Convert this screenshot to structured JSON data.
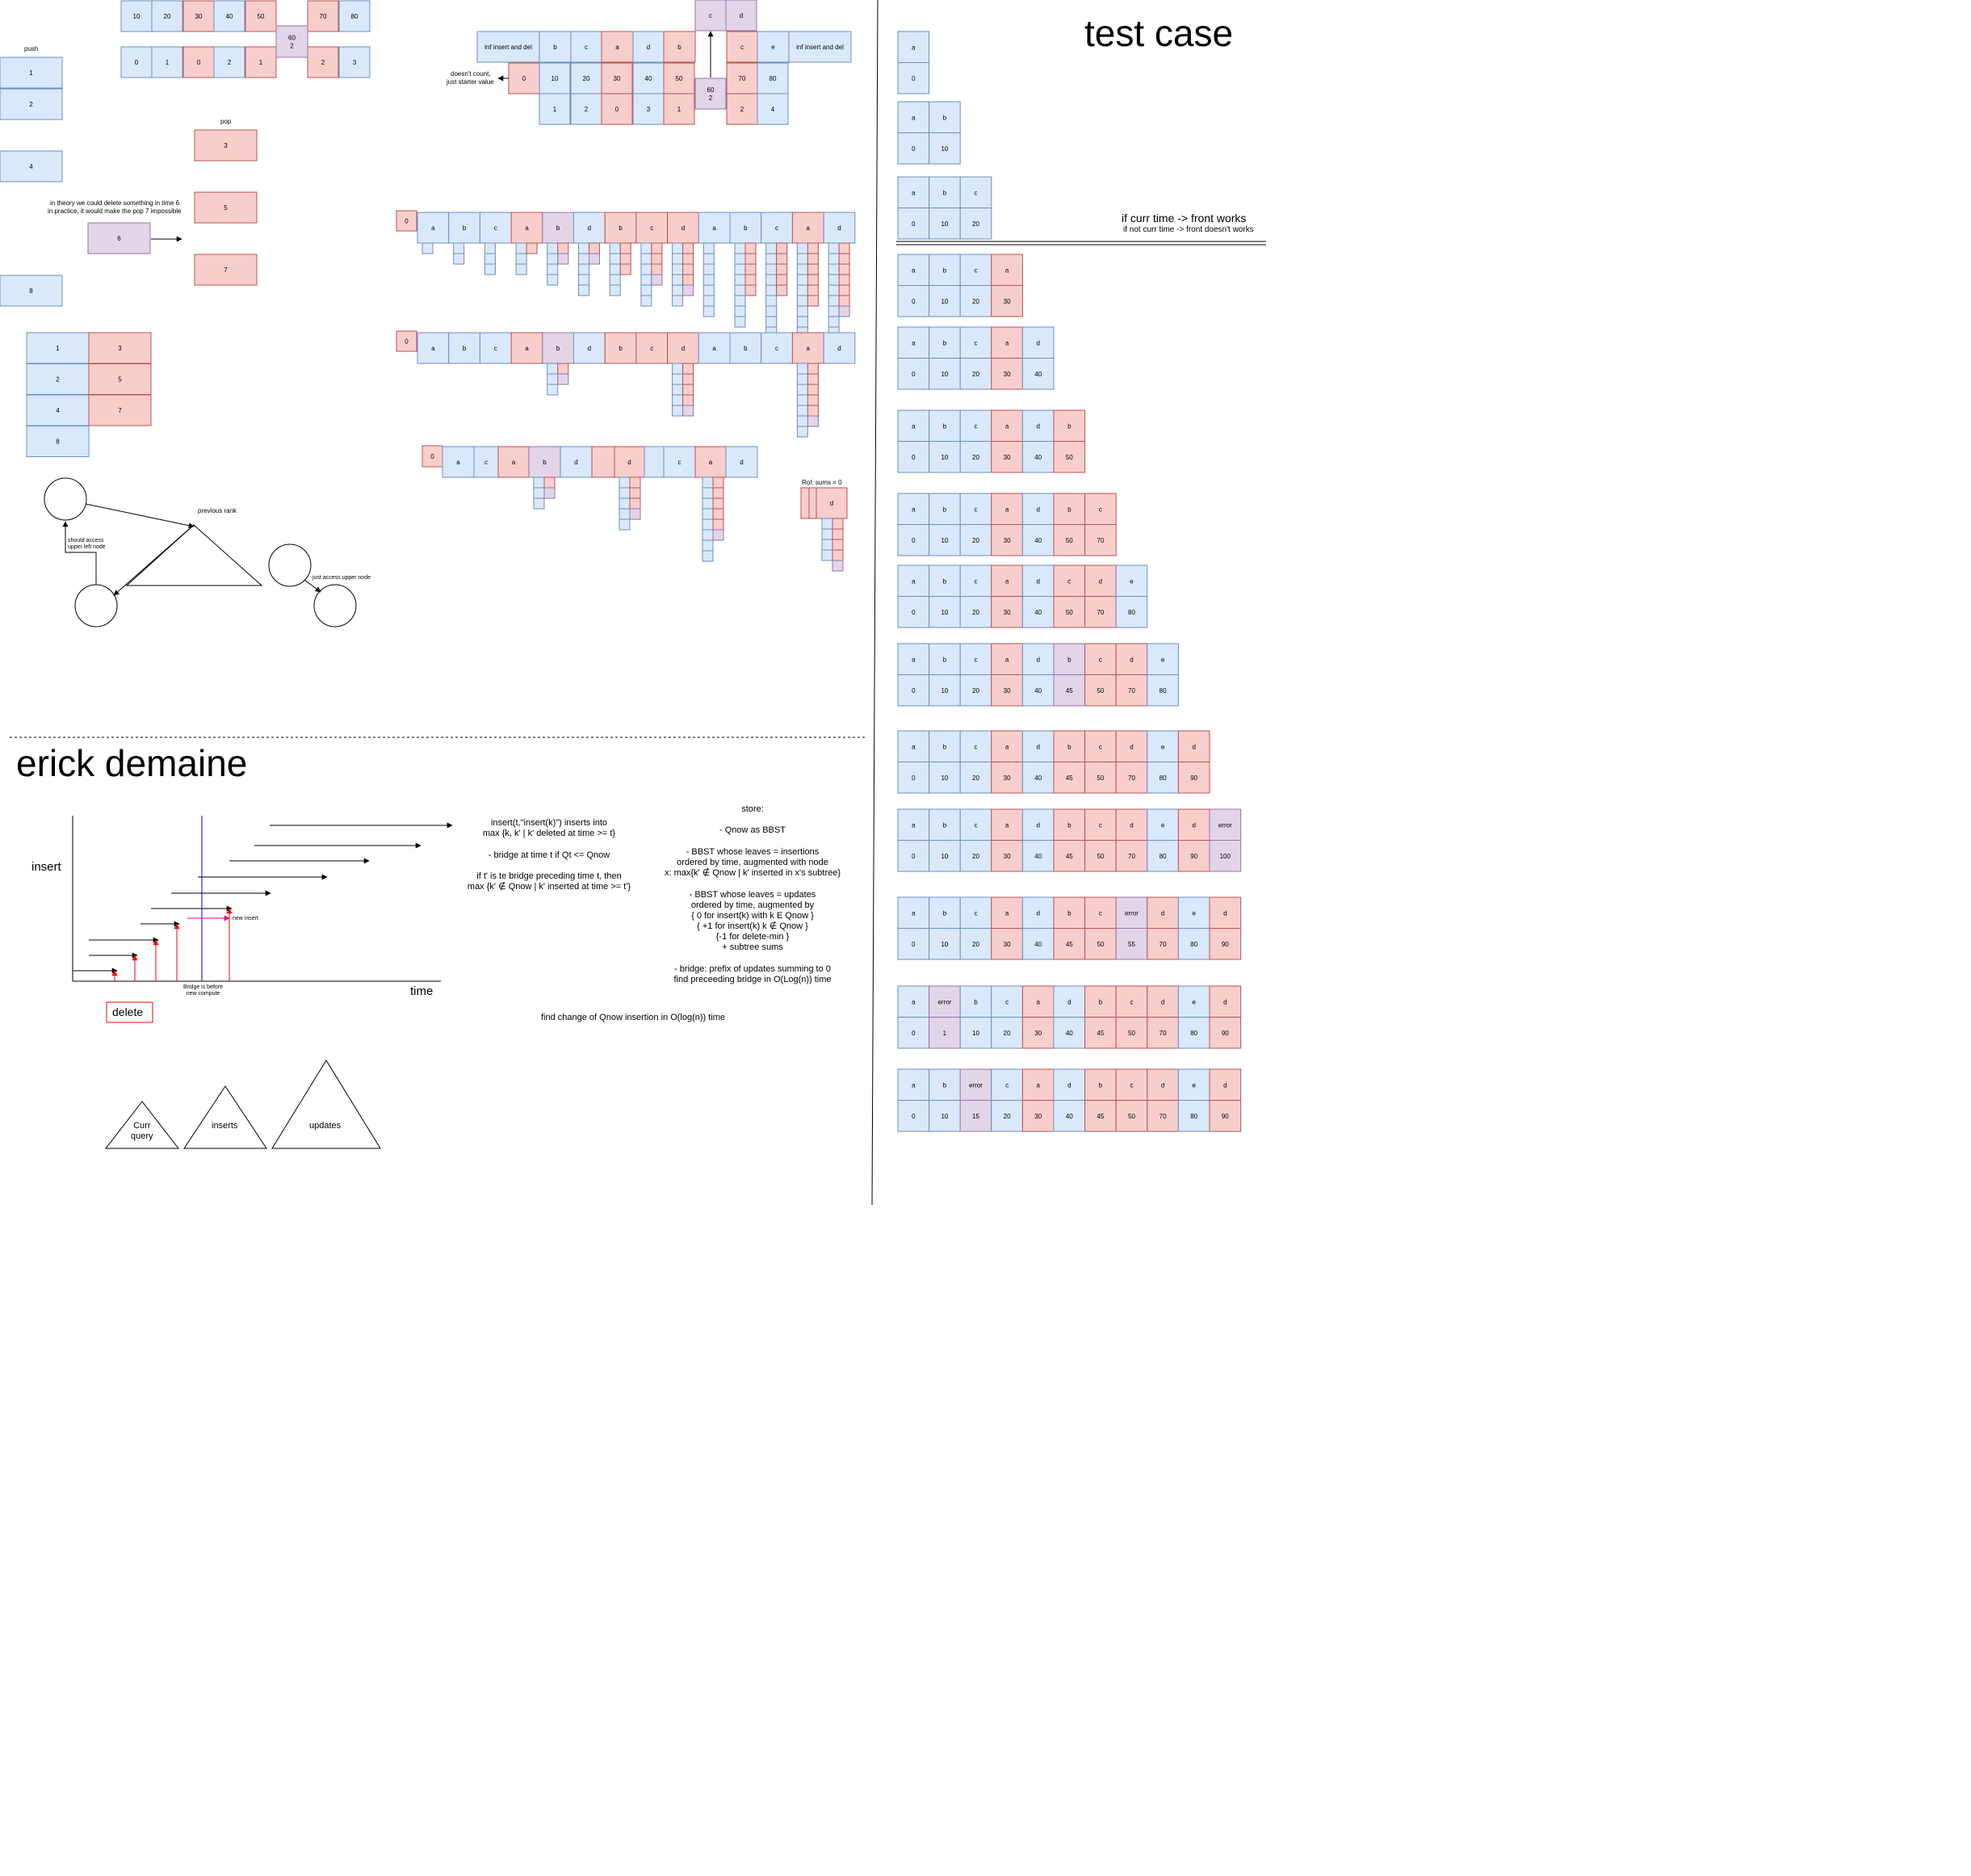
{
  "colors": {
    "blue_fill": "#dae8fc",
    "blue_stroke": "#6c8ebf",
    "red_fill": "#f8cecc",
    "red_stroke": "#b85450",
    "purple_fill": "#e1d5e7",
    "purple_stroke": "#9673a6",
    "line": "#000000",
    "axis_blue": "#0000ff",
    "arrow_red": "#ff0000",
    "arrow_pink": "#ff0080"
  },
  "titles": {
    "test_case": "test case",
    "erick": "erick demaine"
  },
  "queue_a": {
    "keys": [
      "10",
      "20",
      "30",
      "40",
      "50",
      "",
      "70",
      "80"
    ],
    "times": [
      "0",
      "1",
      "0",
      "2",
      "1",
      "",
      "2",
      "3"
    ],
    "colors": [
      "b",
      "b",
      "r",
      "b",
      "r",
      "",
      "r",
      "b"
    ],
    "mid": [
      "60",
      "2"
    ]
  },
  "push_pop": {
    "push_label": "push",
    "push": [
      "1",
      "2",
      "4",
      "8"
    ],
    "pop_label": "pop",
    "pop": [
      "3",
      "5",
      "7"
    ],
    "purple": "6",
    "note_line1": "in theory we could delete something in time 6",
    "note_line2": "in practice, it would make the pop 7 impossible",
    "grid_left": [
      "1",
      "2",
      "4",
      "8"
    ],
    "grid_right": [
      "3",
      "5",
      "7"
    ]
  },
  "top_mid": {
    "top_purple": [
      "c",
      "d"
    ],
    "row1": [
      "inf insert and del",
      "b",
      "c",
      "a",
      "d",
      "b",
      "",
      "c",
      "e",
      "inf insert and del"
    ],
    "row1_colors": [
      "b",
      "b",
      "b",
      "r",
      "b",
      "r",
      "",
      "r",
      "b",
      "b"
    ],
    "row2": [
      "0",
      "10",
      "20",
      "30",
      "40",
      "50",
      "",
      "70",
      "80"
    ],
    "row2_colors": [
      "r",
      "b",
      "b",
      "r",
      "b",
      "r",
      "",
      "r",
      "b"
    ],
    "row3": [
      "1",
      "2",
      "0",
      "3",
      "1",
      "",
      "2",
      "4"
    ],
    "row3_colors": [
      "b",
      "b",
      "r",
      "b",
      "r",
      "",
      "r",
      "b"
    ],
    "mid": [
      "60",
      "2"
    ],
    "note_line1": "doesn't count,",
    "note_line2": "just starter value"
  },
  "stacks": {
    "row1_zero": "0",
    "row1": [
      "a",
      "b",
      "c",
      "a",
      "b",
      "d",
      "b",
      "c",
      "d",
      "a",
      "b",
      "c",
      "a",
      "d"
    ],
    "row1_colors": [
      "b",
      "b",
      "b",
      "r",
      "p",
      "b",
      "r",
      "r",
      "r",
      "b",
      "b",
      "b",
      "r",
      "b"
    ],
    "row2_zero": "0",
    "row2": [
      "a",
      "b",
      "c",
      "a",
      "b",
      "d",
      "b",
      "c",
      "d",
      "a",
      "b",
      "c",
      "a",
      "d"
    ],
    "row2_colors": [
      "b",
      "b",
      "b",
      "r",
      "p",
      "b",
      "r",
      "r",
      "r",
      "b",
      "b",
      "b",
      "r",
      "b"
    ],
    "row3_zero": "0",
    "row3": [
      "a",
      "c",
      "a",
      "b",
      "d",
      "",
      "d",
      "",
      "c",
      "a",
      "d"
    ],
    "row3_colors": [
      "b",
      "b",
      "r",
      "p",
      "b",
      "r",
      "r",
      "b",
      "b",
      "r",
      "b"
    ],
    "rol_label": "RoI: sums = 0",
    "rol_cell": "d"
  },
  "trees": {
    "previous_rank": "previous rank",
    "upper_left": "should access\nupper left node",
    "upper_node": "just access upper node"
  },
  "erick": {
    "insert_label": "insert",
    "time_label": "time",
    "delete_label": "delete",
    "new_insert": "new insert",
    "bridge_note": "Bridge is before\nnew compute",
    "text1": "insert(t,\"insert(k)\") inserts into\nmax {k, k' | k' deleted at time >= t}\n\n- bridge at time t if Qt <= Qnow\n\nif t' is te bridge preceding time t, then\nmax {k' ∉ Qnow | k' inserted at time >= t'}",
    "store": "store:\n\n- Qnow as BBST\n\n- BBST whose leaves = insertions\nordered by time, augmented with node\nx: max{k' ∉ Qnow | k' inserted in x's subtree}\n\n- BBST whose leaves = updates\nordered by time, augmented by\n{ 0 for insert(k) with k E Qnow }\n{ +1 for insert(k) k ∉ Qnow }\n{-1 for delete-min }\n+ subtree sums\n\n- bridge: prefix of updates summing to 0\nfind preceeding bridge in O(Log(n)) time",
    "find_change": "find change of Qnow insertion in O(log(n)) time",
    "tri1": "Curr\nquery",
    "tri2": "inserts",
    "tri3": "updates"
  },
  "test_case": {
    "note1": "if curr time -> front works",
    "note2": "if not curr time -> front doesn't works",
    "grids": [
      {
        "top": [
          "a"
        ],
        "bot": [
          "0"
        ],
        "c": "b"
      },
      {
        "top": [
          "a",
          "b"
        ],
        "bot": [
          "0",
          "10"
        ],
        "c": "bb"
      },
      {
        "top": [
          "a",
          "b",
          "c"
        ],
        "bot": [
          "0",
          "10",
          "20"
        ],
        "c": "bbb"
      },
      {
        "top": [
          "a",
          "b",
          "c",
          "a"
        ],
        "bot": [
          "0",
          "10",
          "20",
          "30"
        ],
        "c": "bbbr"
      },
      {
        "top": [
          "a",
          "b",
          "c",
          "a",
          "d"
        ],
        "bot": [
          "0",
          "10",
          "20",
          "30",
          "40"
        ],
        "c": "bbbrb"
      },
      {
        "top": [
          "a",
          "b",
          "c",
          "a",
          "d",
          "b"
        ],
        "bot": [
          "0",
          "10",
          "20",
          "30",
          "40",
          "50"
        ],
        "c": "bbbrbr"
      },
      {
        "top": [
          "a",
          "b",
          "c",
          "a",
          "d",
          "b",
          "c"
        ],
        "bot": [
          "0",
          "10",
          "20",
          "30",
          "40",
          "50",
          "70"
        ],
        "c": "bbbrbrr"
      },
      {
        "top": [
          "a",
          "b",
          "c",
          "a",
          "d",
          "c",
          "d",
          "e"
        ],
        "bot": [
          "0",
          "10",
          "20",
          "30",
          "40",
          "50",
          "70",
          "80"
        ],
        "c": "bbbrbrrb"
      },
      {
        "top": [
          "a",
          "b",
          "c",
          "a",
          "d",
          "b",
          "c",
          "d",
          "e"
        ],
        "bot": [
          "0",
          "10",
          "20",
          "30",
          "40",
          "45",
          "50",
          "70",
          "80"
        ],
        "c": "bbbrbprrb"
      },
      {
        "top": [
          "a",
          "b",
          "c",
          "a",
          "d",
          "b",
          "c",
          "d",
          "e",
          "d"
        ],
        "bot": [
          "0",
          "10",
          "20",
          "30",
          "40",
          "45",
          "50",
          "70",
          "80",
          "90"
        ],
        "c": "bbbrbrrrbr"
      },
      {
        "top": [
          "a",
          "b",
          "c",
          "a",
          "d",
          "b",
          "c",
          "d",
          "e",
          "d",
          "error"
        ],
        "bot": [
          "0",
          "10",
          "20",
          "30",
          "40",
          "45",
          "50",
          "70",
          "80",
          "90",
          "100"
        ],
        "c": "bbbrbrrrbrp"
      },
      {
        "top": [
          "a",
          "b",
          "c",
          "a",
          "d",
          "b",
          "c",
          "error",
          "d",
          "e",
          "d"
        ],
        "bot": [
          "0",
          "10",
          "20",
          "30",
          "40",
          "45",
          "50",
          "55",
          "70",
          "80",
          "90"
        ],
        "c": "bbbrbrrprbr"
      },
      {
        "top": [
          "a",
          "error",
          "b",
          "c",
          "a",
          "d",
          "b",
          "c",
          "d",
          "e",
          "d"
        ],
        "bot": [
          "0",
          "1",
          "10",
          "20",
          "30",
          "40",
          "45",
          "50",
          "70",
          "80",
          "90"
        ],
        "c": "bpbbrbrrrbr"
      },
      {
        "top": [
          "a",
          "b",
          "error",
          "c",
          "a",
          "d",
          "b",
          "c",
          "d",
          "e",
          "d"
        ],
        "bot": [
          "0",
          "10",
          "15",
          "20",
          "30",
          "40",
          "45",
          "50",
          "70",
          "80",
          "90"
        ],
        "c": "bbpbrbrrrbr"
      }
    ]
  }
}
